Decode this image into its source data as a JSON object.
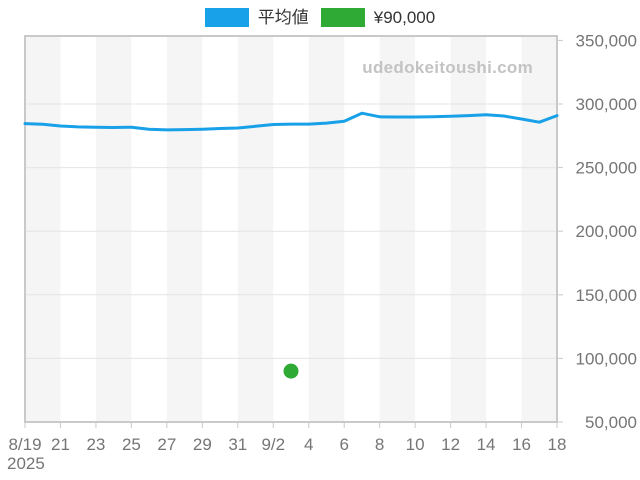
{
  "legend": {
    "items": [
      {
        "label": "平均値",
        "color": "#18a0e8"
      },
      {
        "label": "¥90,000",
        "color": "#2faa35"
      }
    ]
  },
  "watermark": "udedokeitoushi.com",
  "colors": {
    "band": "#f5f5f5",
    "plot_background": "#ffffff",
    "border": "#c9c9c9",
    "gridline": "#e4e4e4",
    "axis_text": "#757575",
    "legend_text": "#333333",
    "watermark_text": "#c3c3c3",
    "line_blue": "#18a0e8",
    "point_green": "#2faa35"
  },
  "chart_data": {
    "type": "line",
    "title": "",
    "xlabel": "",
    "ylabel": "",
    "legend_position": "top",
    "grid": "horizontal",
    "background": "alternating-vertical-bands",
    "ylim": [
      50000,
      350000
    ],
    "y_step": 50000,
    "y_tick_labels": [
      "50,000",
      "100,000",
      "150,000",
      "200,000",
      "250,000",
      "300,000",
      "350,000"
    ],
    "x_tick_labels": [
      "8/19",
      "21",
      "23",
      "25",
      "27",
      "29",
      "31",
      "9/2",
      "4",
      "6",
      "8",
      "10",
      "12",
      "14",
      "16",
      "18"
    ],
    "year_label": "2025",
    "x": [
      "8/19",
      "8/20",
      "8/21",
      "8/22",
      "8/23",
      "8/24",
      "8/25",
      "8/26",
      "8/27",
      "8/28",
      "8/29",
      "8/30",
      "8/31",
      "9/1",
      "9/2",
      "9/3",
      "9/4",
      "9/5",
      "9/6",
      "9/7",
      "9/8",
      "9/9",
      "9/10",
      "9/11",
      "9/12",
      "9/13",
      "9/14",
      "9/15",
      "9/16",
      "9/17",
      "9/18"
    ],
    "series": [
      {
        "name": "平均値",
        "color": "#18a0e8",
        "values": [
          284600,
          284100,
          282700,
          282000,
          281800,
          281500,
          281800,
          280200,
          279600,
          279900,
          280200,
          280700,
          281100,
          282500,
          283900,
          284200,
          284200,
          285000,
          286500,
          292800,
          289900,
          289800,
          289800,
          290000,
          290300,
          290900,
          291500,
          290600,
          288200,
          285700,
          290900
        ]
      }
    ],
    "point": {
      "name": "¥90,000",
      "color": "#2faa35",
      "x": "9/3",
      "value": 90000
    }
  }
}
